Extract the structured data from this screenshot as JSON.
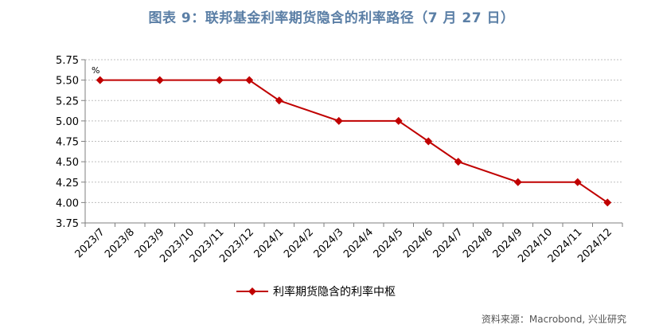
{
  "title": "图表 9：联邦基金利率期货隐含的利率路径（7 月 27 日）",
  "source": "资料来源：Macrobond, 兴业研究",
  "colors": {
    "series": "#c00000",
    "axis": "#7f7f7f",
    "grid": "#bfbfbf"
  },
  "chart_data": {
    "type": "line",
    "unit": "%",
    "categories": [
      "2023/7",
      "2023/8",
      "2023/9",
      "2023/10",
      "2023/11",
      "2023/12",
      "2024/1",
      "2024/2",
      "2024/3",
      "2024/4",
      "2024/5",
      "2024/6",
      "2024/7",
      "2024/8",
      "2024/9",
      "2024/10",
      "2024/11",
      "2024/12"
    ],
    "yticks": [
      "3.75",
      "4.00",
      "4.25",
      "4.50",
      "4.75",
      "5.00",
      "5.25",
      "5.50",
      "5.75"
    ],
    "ylim": [
      3.75,
      5.75
    ],
    "grid": true,
    "legend_position": "bottom",
    "series": [
      {
        "name": "利率期货隐含的利率中枢",
        "points": [
          {
            "x": "2023/7",
            "y": 5.5
          },
          {
            "x": "2023/9",
            "y": 5.5
          },
          {
            "x": "2023/11",
            "y": 5.5
          },
          {
            "x": "2023/12",
            "y": 5.5
          },
          {
            "x": "2024/1",
            "y": 5.25
          },
          {
            "x": "2024/3",
            "y": 5.0
          },
          {
            "x": "2024/5",
            "y": 5.0
          },
          {
            "x": "2024/6",
            "y": 4.75
          },
          {
            "x": "2024/7",
            "y": 4.5
          },
          {
            "x": "2024/9",
            "y": 4.25
          },
          {
            "x": "2024/11",
            "y": 4.25
          },
          {
            "x": "2024/12",
            "y": 4.0
          }
        ]
      }
    ]
  }
}
